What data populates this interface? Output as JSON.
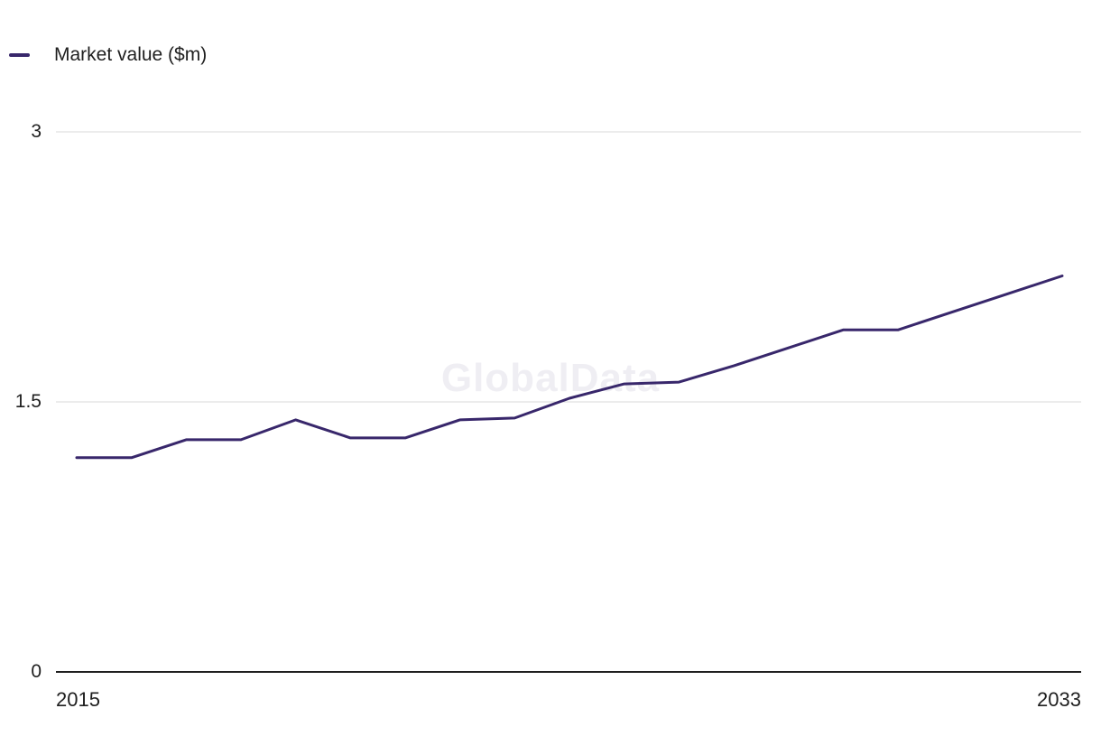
{
  "legend": {
    "items": [
      {
        "label": "Market value ($m)",
        "color": "#38276b"
      }
    ]
  },
  "watermark": "GlobalData",
  "chart_data": {
    "type": "line",
    "title": "",
    "xlabel": "",
    "ylabel": "Market value ($m)",
    "x": [
      2015,
      2016,
      2017,
      2018,
      2019,
      2020,
      2021,
      2022,
      2023,
      2024,
      2025,
      2026,
      2027,
      2028,
      2029,
      2030,
      2031,
      2032,
      2033
    ],
    "series": [
      {
        "name": "Market value ($m)",
        "color": "#38276b",
        "values": [
          1.19,
          1.19,
          1.29,
          1.29,
          1.4,
          1.3,
          1.3,
          1.4,
          1.41,
          1.52,
          1.6,
          1.61,
          1.7,
          1.8,
          1.9,
          1.9,
          2.0,
          2.1,
          2.2
        ]
      }
    ],
    "ylim": [
      0,
      3
    ],
    "yticks": [
      0,
      1.5,
      3
    ],
    "ytick_labels": [
      "3",
      "1.5",
      "0"
    ],
    "xtick_labels": [
      "2015",
      "2033"
    ],
    "grid": "horizontal",
    "legend_position": "top-left",
    "colors": {
      "line": "#38276b",
      "grid": "#d9d9d9",
      "axis": "#1f1f1f",
      "watermark": "#efeef3",
      "text": "#1f1f1f",
      "background": "#ffffff"
    }
  }
}
